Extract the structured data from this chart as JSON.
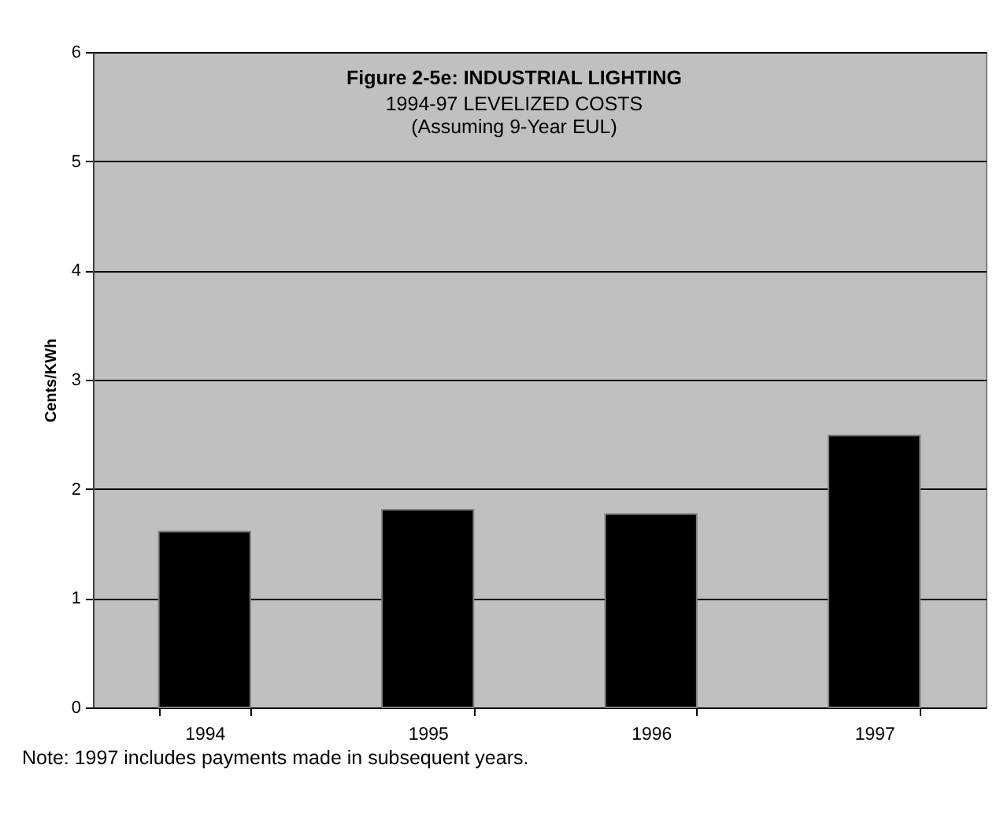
{
  "chart_data": {
    "type": "bar",
    "title": "Figure 2-5e:  INDUSTRIAL LIGHTING",
    "subtitle": "1994-97 LEVELIZED COSTS\n(Assuming 9-Year EUL)",
    "ylabel": "Cents/KWh",
    "categories": [
      "1994",
      "1995",
      "1996",
      "1997"
    ],
    "values": [
      1.61,
      1.81,
      1.77,
      2.49
    ],
    "color": "#000000",
    "ylim": [
      0,
      6
    ],
    "yticks": [
      0,
      1,
      2,
      3,
      4,
      5,
      6
    ],
    "grid": "y",
    "annotations": [
      "Note: 1997 includes payments made in subsequent years."
    ]
  }
}
